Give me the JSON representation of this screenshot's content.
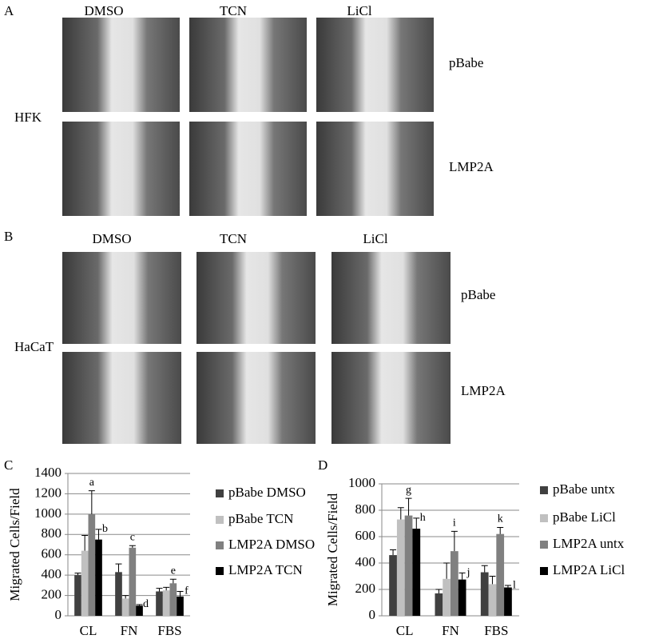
{
  "panel_a": {
    "label": "A",
    "cell_line": "HFK",
    "columns": [
      "DMSO",
      "TCN",
      "LiCl"
    ],
    "rows": [
      "pBabe",
      "LMP2A"
    ]
  },
  "panel_b": {
    "label": "B",
    "cell_line": "HaCaT",
    "columns": [
      "DMSO",
      "TCN",
      "LiCl"
    ],
    "rows": [
      "pBabe",
      "LMP2A"
    ]
  },
  "chart_data": [
    {
      "type": "bar",
      "label": "C",
      "y_label": "Migrated Cells/Field",
      "categories": [
        "CL",
        "FN",
        "FBS"
      ],
      "ylim": [
        0,
        1400
      ],
      "yticks": [
        0,
        200,
        400,
        600,
        800,
        1000,
        1200,
        1400
      ],
      "grid": true,
      "series": [
        {
          "name": "pBabe DMSO",
          "color": "#404040",
          "values": [
            400,
            430,
            240
          ],
          "errors": [
            20,
            80,
            30
          ]
        },
        {
          "name": "pBabe TCN",
          "color": "#c0c0c0",
          "values": [
            640,
            170,
            250
          ],
          "errors": [
            150,
            30,
            30
          ]
        },
        {
          "name": "LMP2A DMSO",
          "color": "#808080",
          "values": [
            1000,
            670,
            320
          ],
          "errors": [
            230,
            20,
            40
          ],
          "annotations": [
            "a",
            "c",
            "e"
          ]
        },
        {
          "name": "LMP2A TCN",
          "color": "#000000",
          "values": [
            750,
            100,
            190
          ],
          "errors": [
            100,
            10,
            50
          ],
          "annotations": [
            "b",
            "d",
            "f"
          ]
        }
      ]
    },
    {
      "type": "bar",
      "label": "D",
      "y_label": "Migrated Cells/Field",
      "categories": [
        "CL",
        "FN",
        "FBS"
      ],
      "ylim": [
        0,
        1000
      ],
      "yticks": [
        0,
        200,
        400,
        600,
        800,
        1000
      ],
      "grid": true,
      "series": [
        {
          "name": "pBabe untx",
          "color": "#404040",
          "values": [
            460,
            170,
            330
          ],
          "errors": [
            40,
            30,
            50
          ]
        },
        {
          "name": "pBabe LiCl",
          "color": "#c0c0c0",
          "values": [
            730,
            280,
            240
          ],
          "errors": [
            90,
            120,
            60
          ]
        },
        {
          "name": "LMP2A untx",
          "color": "#808080",
          "values": [
            760,
            490,
            620
          ],
          "errors": [
            130,
            150,
            50
          ],
          "annotations": [
            "g",
            "i",
            "k"
          ]
        },
        {
          "name": "LMP2A LiCl",
          "color": "#000000",
          "values": [
            660,
            275,
            215
          ],
          "errors": [
            80,
            50,
            15
          ],
          "annotations": [
            "h",
            "j",
            "l"
          ]
        }
      ]
    }
  ]
}
